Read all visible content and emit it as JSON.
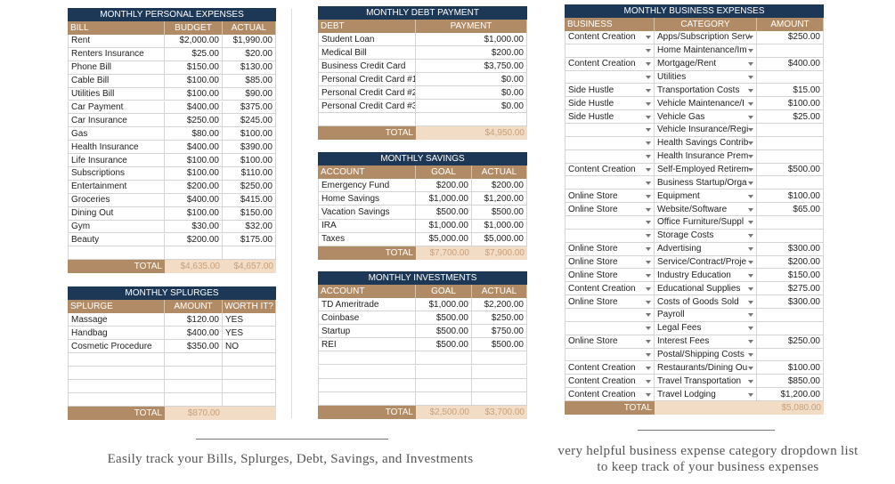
{
  "personal_expenses": {
    "title": "MONTHLY PERSONAL EXPENSES",
    "columns": [
      "BILL",
      "BUDGET",
      "ACTUAL"
    ],
    "rows": [
      [
        "Rent",
        "$2,000.00",
        "$1,990.00"
      ],
      [
        "Renters Insurance",
        "$25.00",
        "$20.00"
      ],
      [
        "Phone Bill",
        "$150.00",
        "$130.00"
      ],
      [
        "Cable Bill",
        "$100.00",
        "$85.00"
      ],
      [
        "Utilities Bill",
        "$100.00",
        "$90.00"
      ],
      [
        "Car Payment",
        "$400.00",
        "$375.00"
      ],
      [
        "Car Insurance",
        "$250.00",
        "$245.00"
      ],
      [
        "Gas",
        "$80.00",
        "$100.00"
      ],
      [
        "Health Insurance",
        "$400.00",
        "$390.00"
      ],
      [
        "Life Insurance",
        "$100.00",
        "$100.00"
      ],
      [
        "Subscriptions",
        "$100.00",
        "$110.00"
      ],
      [
        "Entertainment",
        "$200.00",
        "$250.00"
      ],
      [
        "Groceries",
        "$400.00",
        "$415.00"
      ],
      [
        "Dining Out",
        "$100.00",
        "$150.00"
      ],
      [
        "Gym",
        "$30.00",
        "$32.00"
      ],
      [
        "Beauty",
        "$200.00",
        "$175.00"
      ]
    ],
    "total": {
      "label": "TOTAL",
      "values": [
        "$4,635.00",
        "$4,657.00"
      ]
    }
  },
  "splurges": {
    "title": "MONTHLY SPLURGES",
    "columns": [
      "SPLURGE",
      "AMOUNT",
      "WORTH IT?"
    ],
    "rows": [
      [
        "Massage",
        "$120.00",
        "YES"
      ],
      [
        "Handbag",
        "$400.00",
        "YES"
      ],
      [
        "Cosmetic Procedure",
        "$350.00",
        "NO"
      ]
    ],
    "total": {
      "label": "TOTAL",
      "values": [
        "$870.00",
        null
      ]
    }
  },
  "debt_payment": {
    "title": "MONTHLY DEBT PAYMENT",
    "columns": [
      "DEBT",
      "PAYMENT"
    ],
    "rows": [
      [
        "Student Loan",
        "$1,000.00"
      ],
      [
        "Medical Bill",
        "$200.00"
      ],
      [
        "Business Credit Card",
        "$3,750.00"
      ],
      [
        "Personal Credit Card #1",
        "$0.00"
      ],
      [
        "Personal Credit Card #2",
        "$0.00"
      ],
      [
        "Personal Credit Card #3",
        "$0.00"
      ]
    ],
    "total": {
      "label": "TOTAL",
      "values": [
        "$4,950.00"
      ]
    }
  },
  "savings": {
    "title": "MONTHLY SAVINGS",
    "columns": [
      "ACCOUNT",
      "GOAL",
      "ACTUAL"
    ],
    "rows": [
      [
        "Emergency Fund",
        "$200.00",
        "$200.00"
      ],
      [
        "Home Savings",
        "$1,000.00",
        "$1,200.00"
      ],
      [
        "Vacation Savings",
        "$500.00",
        "$500.00"
      ],
      [
        "IRA",
        "$1,000.00",
        "$1,000.00"
      ],
      [
        "Taxes",
        "$5,000.00",
        "$5,000.00"
      ]
    ],
    "total": {
      "label": "TOTAL",
      "values": [
        "$7,700.00",
        "$7,900.00"
      ]
    }
  },
  "investments": {
    "title": "MONTHLY INVESTMENTS",
    "columns": [
      "ACCOUNT",
      "GOAL",
      "ACTUAL"
    ],
    "rows": [
      [
        "TD Ameritrade",
        "$1,000.00",
        "$2,200.00"
      ],
      [
        "Coinbase",
        "$500.00",
        "$250.00"
      ],
      [
        "Startup",
        "$500.00",
        "$750.00"
      ],
      [
        "REI",
        "$500.00",
        "$500.00"
      ]
    ],
    "total": {
      "label": "TOTAL",
      "values": [
        "$2,500.00",
        "$3,700.00"
      ]
    }
  },
  "business_expenses": {
    "title": "MONTHLY BUSINESS EXPENSES",
    "columns": [
      "BUSINESS",
      "CATEGORY",
      "AMOUNT"
    ],
    "rows": [
      [
        "Content Creation",
        "Apps/Subscription Serv",
        "$250.00"
      ],
      [
        null,
        "Home Maintenance/Im",
        null
      ],
      [
        "Content Creation",
        "Mortgage/Rent",
        "$400.00"
      ],
      [
        null,
        "Utilities",
        null
      ],
      [
        "Side Hustle",
        "Transportation Costs",
        "$15.00"
      ],
      [
        "Side Hustle",
        "Vehicle Maintenance/I",
        "$100.00"
      ],
      [
        "Side Hustle",
        "Vehicle Gas",
        "$25.00"
      ],
      [
        null,
        "Vehicle Insurance/Regi",
        null
      ],
      [
        null,
        "Health Savings Contrib",
        null
      ],
      [
        null,
        "Health Insurance Prem",
        null
      ],
      [
        "Content Creation",
        "Self-Employed Retirem",
        "$500.00"
      ],
      [
        null,
        "Business Startup/Orga",
        null
      ],
      [
        "Online Store",
        "Equipment",
        "$100.00"
      ],
      [
        "Online Store",
        "Website/Software",
        "$65.00"
      ],
      [
        null,
        "Office Furniture/Suppl",
        null
      ],
      [
        null,
        "Storage Costs",
        null
      ],
      [
        "Online Store",
        "Advertising",
        "$300.00"
      ],
      [
        "Online Store",
        "Service/Contract/Proje",
        "$200.00"
      ],
      [
        "Online Store",
        "Industry Education",
        "$150.00"
      ],
      [
        "Content Creation",
        "Educational Supplies",
        "$275.00"
      ],
      [
        "Online Store",
        "Costs of Goods Sold",
        "$300.00"
      ],
      [
        null,
        "Payroll",
        null
      ],
      [
        null,
        "Legal Fees",
        null
      ],
      [
        "Online Store",
        "Interest Fees",
        "$250.00"
      ],
      [
        null,
        "Postal/Shipping Costs",
        null
      ],
      [
        "Content Creation",
        "Restaurants/Dining Ou",
        "$100.00"
      ],
      [
        "Content Creation",
        "Travel Transportation",
        "$850.00"
      ],
      [
        "Content Creation",
        "Travel Lodging",
        "$1,200.00"
      ]
    ],
    "total": {
      "label": "TOTAL",
      "values": [
        null,
        "$5,080.00"
      ]
    }
  },
  "captions": {
    "left": "Easily track your Bills, Splurges, Debt, Savings, and Investments",
    "right": [
      "very helpful business expense category dropdown list",
      "to keep track of your business expenses"
    ]
  }
}
